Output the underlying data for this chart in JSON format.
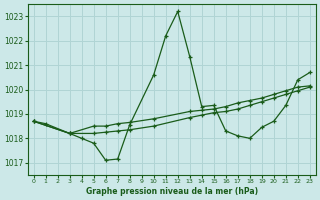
{
  "title": "Graphe pression niveau de la mer (hPa)",
  "bg_color": "#cce8e8",
  "grid_color": "#b0d4d4",
  "line_color": "#1a5c1a",
  "ylim": [
    1016.5,
    1023.5
  ],
  "xlim": [
    -0.5,
    23.5
  ],
  "yticks": [
    1017,
    1018,
    1019,
    1020,
    1021,
    1022,
    1023
  ],
  "xtick_labels": [
    "0",
    "1",
    "2",
    "3",
    "4",
    "5",
    "6",
    "7",
    "8",
    "9",
    "1011",
    "1213",
    "1415",
    "1617",
    "1819",
    "2021",
    "2223"
  ],
  "series1_x": [
    0,
    1,
    3,
    4,
    5,
    6,
    7,
    8,
    10,
    11,
    12,
    13,
    14,
    15,
    16,
    17,
    18,
    19,
    20,
    21,
    22,
    23
  ],
  "series1_y": [
    1018.7,
    1018.6,
    1018.2,
    1018.0,
    1017.8,
    1017.1,
    1017.15,
    1018.55,
    1020.6,
    1022.2,
    1023.2,
    1021.35,
    1019.3,
    1019.35,
    1018.3,
    1018.1,
    1018.0,
    1018.45,
    1018.7,
    1019.35,
    1020.4,
    1020.7
  ],
  "series2_x": [
    0,
    3,
    5,
    6,
    7,
    8,
    10,
    13,
    14,
    15,
    16,
    17,
    18,
    19,
    20,
    21,
    22,
    23
  ],
  "series2_y": [
    1018.7,
    1018.2,
    1018.5,
    1018.5,
    1018.6,
    1018.65,
    1018.8,
    1019.1,
    1019.15,
    1019.2,
    1019.3,
    1019.45,
    1019.55,
    1019.65,
    1019.8,
    1019.95,
    1020.1,
    1020.15
  ],
  "series3_x": [
    0,
    3,
    5,
    6,
    7,
    8,
    10,
    13,
    14,
    15,
    16,
    17,
    18,
    19,
    20,
    21,
    22,
    23
  ],
  "series3_y": [
    1018.7,
    1018.2,
    1018.2,
    1018.25,
    1018.3,
    1018.35,
    1018.5,
    1018.85,
    1018.95,
    1019.05,
    1019.1,
    1019.2,
    1019.35,
    1019.5,
    1019.65,
    1019.8,
    1019.95,
    1020.1
  ]
}
